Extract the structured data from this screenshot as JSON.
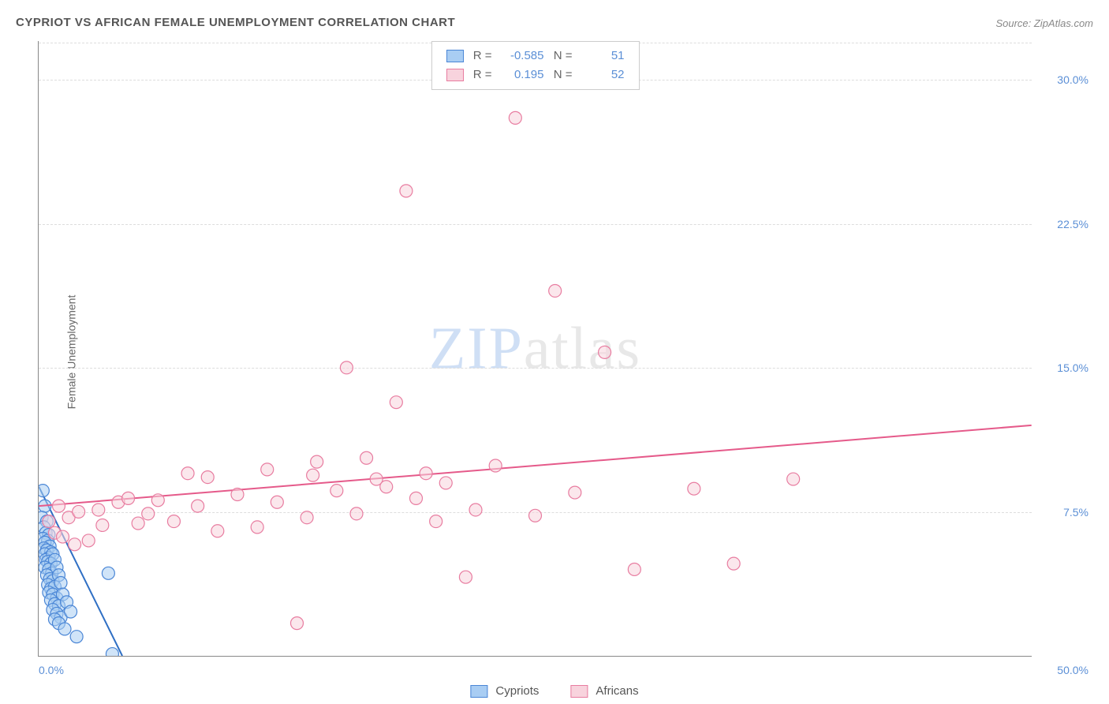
{
  "title": "CYPRIOT VS AFRICAN FEMALE UNEMPLOYMENT CORRELATION CHART",
  "source": "Source: ZipAtlas.com",
  "y_axis_label": "Female Unemployment",
  "watermark": {
    "zip": "ZIP",
    "rest": "atlas"
  },
  "xlim": [
    0,
    50
  ],
  "ylim": [
    0,
    32
  ],
  "y_ticks": [
    {
      "value": 7.5,
      "label": "7.5%"
    },
    {
      "value": 15.0,
      "label": "15.0%"
    },
    {
      "value": 22.5,
      "label": "22.5%"
    },
    {
      "value": 30.0,
      "label": "30.0%"
    }
  ],
  "x_ticks": [
    {
      "value": 0,
      "label": "0.0%",
      "align": "left"
    },
    {
      "value": 50,
      "label": "50.0%",
      "align": "right"
    }
  ],
  "grid_color": "#dddddd",
  "tick_color": "#5b8fd6",
  "series": [
    {
      "name": "Cypriots",
      "fill": "#a9cdf3",
      "stroke": "#4a86d6",
      "line_color": "#2f6fc4",
      "stats": {
        "R": "-0.585",
        "N": "51"
      },
      "trend": {
        "x1": 0,
        "y1": 8.8,
        "x2": 4.2,
        "y2": 0
      },
      "points": [
        [
          0.2,
          8.6
        ],
        [
          0.3,
          7.8
        ],
        [
          0.15,
          7.2
        ],
        [
          0.4,
          7.0
        ],
        [
          0.25,
          6.7
        ],
        [
          0.35,
          6.4
        ],
        [
          0.5,
          6.3
        ],
        [
          0.2,
          6.1
        ],
        [
          0.45,
          6.0
        ],
        [
          0.3,
          5.9
        ],
        [
          0.55,
          5.7
        ],
        [
          0.25,
          5.6
        ],
        [
          0.4,
          5.5
        ],
        [
          0.6,
          5.4
        ],
        [
          0.3,
          5.3
        ],
        [
          0.5,
          5.1
        ],
        [
          0.35,
          5.0
        ],
        [
          0.7,
          5.3
        ],
        [
          0.45,
          4.9
        ],
        [
          0.6,
          4.8
        ],
        [
          0.3,
          4.6
        ],
        [
          0.8,
          5.0
        ],
        [
          0.5,
          4.5
        ],
        [
          0.65,
          4.3
        ],
        [
          0.4,
          4.2
        ],
        [
          0.9,
          4.6
        ],
        [
          0.55,
          4.0
        ],
        [
          0.7,
          3.9
        ],
        [
          0.45,
          3.7
        ],
        [
          1.0,
          4.2
        ],
        [
          0.6,
          3.5
        ],
        [
          0.8,
          3.6
        ],
        [
          0.5,
          3.3
        ],
        [
          1.1,
          3.8
        ],
        [
          0.7,
          3.2
        ],
        [
          0.9,
          3.0
        ],
        [
          0.6,
          2.9
        ],
        [
          1.2,
          3.2
        ],
        [
          0.8,
          2.7
        ],
        [
          1.0,
          2.6
        ],
        [
          0.7,
          2.4
        ],
        [
          1.4,
          2.8
        ],
        [
          0.9,
          2.2
        ],
        [
          1.1,
          2.0
        ],
        [
          0.8,
          1.9
        ],
        [
          1.6,
          2.3
        ],
        [
          1.0,
          1.7
        ],
        [
          3.5,
          4.3
        ],
        [
          1.3,
          1.4
        ],
        [
          1.9,
          1.0
        ],
        [
          3.7,
          0.1
        ]
      ]
    },
    {
      "name": "Africans",
      "fill": "#f8d3dd",
      "stroke": "#e87ca0",
      "line_color": "#e55a8a",
      "stats": {
        "R": "0.195",
        "N": "52"
      },
      "trend": {
        "x1": 0,
        "y1": 7.8,
        "x2": 50,
        "y2": 12.0
      },
      "points": [
        [
          0.5,
          7.0
        ],
        [
          0.8,
          6.4
        ],
        [
          1.0,
          7.8
        ],
        [
          1.2,
          6.2
        ],
        [
          1.5,
          7.2
        ],
        [
          1.8,
          5.8
        ],
        [
          2.0,
          7.5
        ],
        [
          2.5,
          6.0
        ],
        [
          3.0,
          7.6
        ],
        [
          3.2,
          6.8
        ],
        [
          4.0,
          8.0
        ],
        [
          4.5,
          8.2
        ],
        [
          5.0,
          6.9
        ],
        [
          5.5,
          7.4
        ],
        [
          6.0,
          8.1
        ],
        [
          6.8,
          7.0
        ],
        [
          7.5,
          9.5
        ],
        [
          8.0,
          7.8
        ],
        [
          8.5,
          9.3
        ],
        [
          9.0,
          6.5
        ],
        [
          10.0,
          8.4
        ],
        [
          11.0,
          6.7
        ],
        [
          11.5,
          9.7
        ],
        [
          12.0,
          8.0
        ],
        [
          13.0,
          1.7
        ],
        [
          13.5,
          7.2
        ],
        [
          14.0,
          10.1
        ],
        [
          15.0,
          8.6
        ],
        [
          15.5,
          15.0
        ],
        [
          16.0,
          7.4
        ],
        [
          16.5,
          10.3
        ],
        [
          17.5,
          8.8
        ],
        [
          18.0,
          13.2
        ],
        [
          18.5,
          24.2
        ],
        [
          19.0,
          8.2
        ],
        [
          20.0,
          7.0
        ],
        [
          20.5,
          9.0
        ],
        [
          21.5,
          4.1
        ],
        [
          22.0,
          7.6
        ],
        [
          23.0,
          9.9
        ],
        [
          24.0,
          28.0
        ],
        [
          25.0,
          7.3
        ],
        [
          26.0,
          19.0
        ],
        [
          27.0,
          8.5
        ],
        [
          28.5,
          15.8
        ],
        [
          30.0,
          4.5
        ],
        [
          33.0,
          8.7
        ],
        [
          35.0,
          4.8
        ],
        [
          38.0,
          9.2
        ],
        [
          13.8,
          9.4
        ],
        [
          17.0,
          9.2
        ],
        [
          19.5,
          9.5
        ]
      ]
    }
  ],
  "marker_radius": 8,
  "marker_opacity": 0.55,
  "legend_top": {
    "labels": {
      "R": "R =",
      "N": "N ="
    }
  },
  "legend_bottom": {
    "items": [
      "Cypriots",
      "Africans"
    ]
  }
}
